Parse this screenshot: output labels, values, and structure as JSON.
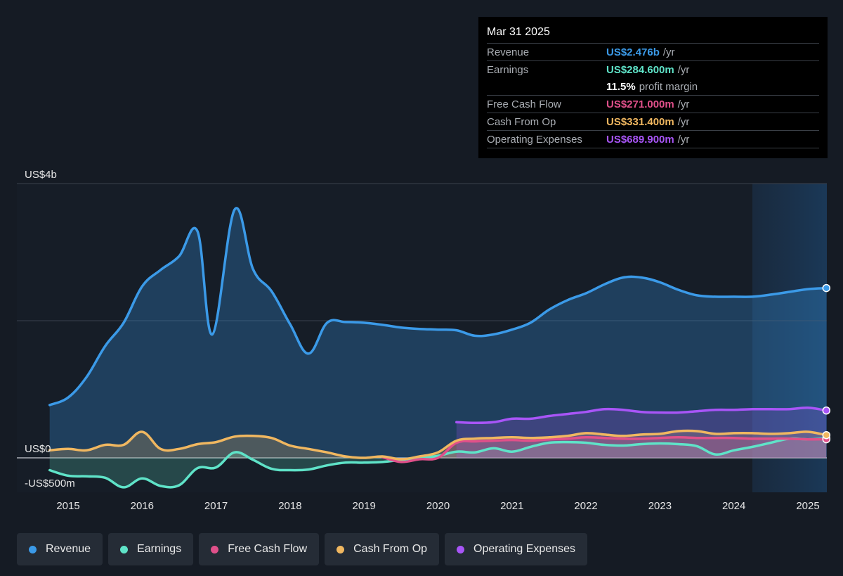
{
  "tooltip": {
    "date": "Mar 31 2025",
    "rows": [
      {
        "label": "Revenue",
        "value": "US$2.476b",
        "unit": "/yr",
        "color": "#3b9ae8"
      },
      {
        "label": "Earnings",
        "value": "US$284.600m",
        "unit": "/yr",
        "color": "#5fe3c8"
      },
      {
        "label": "",
        "value": "11.5%",
        "unit": "profit margin",
        "color": "#ffffff"
      },
      {
        "label": "Free Cash Flow",
        "value": "US$271.000m",
        "unit": "/yr",
        "color": "#e0508a"
      },
      {
        "label": "Cash From Op",
        "value": "US$331.400m",
        "unit": "/yr",
        "color": "#f0b760"
      },
      {
        "label": "Operating Expenses",
        "value": "US$689.900m",
        "unit": "/yr",
        "color": "#a855f7"
      }
    ]
  },
  "legend": [
    {
      "label": "Revenue",
      "color": "#3b9ae8"
    },
    {
      "label": "Earnings",
      "color": "#5fe3c8"
    },
    {
      "label": "Free Cash Flow",
      "color": "#e0508a"
    },
    {
      "label": "Cash From Op",
      "color": "#f0b760"
    },
    {
      "label": "Operating Expenses",
      "color": "#a855f7"
    }
  ],
  "chart_data": {
    "type": "area",
    "units": "US$m",
    "y_tick_labels": [
      {
        "label": "US$4b",
        "value": 4000
      },
      {
        "label": "US$0",
        "value": 0
      },
      {
        "label": "-US$500m",
        "value": -500
      }
    ],
    "ylim": [
      -500,
      4000
    ],
    "xlim": [
      2014.5,
      2025.25
    ],
    "x_ticks": [
      "2015",
      "2016",
      "2017",
      "2018",
      "2019",
      "2020",
      "2021",
      "2022",
      "2023",
      "2024",
      "2025"
    ],
    "forecast_shade_start": 2024.25,
    "series": [
      {
        "name": "Revenue",
        "color": "#3b9ae8",
        "area": true,
        "end_marker": true,
        "points": [
          [
            2014.75,
            770
          ],
          [
            2015,
            880
          ],
          [
            2015.25,
            1180
          ],
          [
            2015.5,
            1630
          ],
          [
            2015.75,
            1970
          ],
          [
            2016,
            2500
          ],
          [
            2016.25,
            2740
          ],
          [
            2016.5,
            2940
          ],
          [
            2016.75,
            3300
          ],
          [
            2016.95,
            1800
          ],
          [
            2017.25,
            3620
          ],
          [
            2017.5,
            2750
          ],
          [
            2017.75,
            2430
          ],
          [
            2018,
            1950
          ],
          [
            2018.25,
            1520
          ],
          [
            2018.5,
            1970
          ],
          [
            2018.75,
            1980
          ],
          [
            2019,
            1970
          ],
          [
            2019.25,
            1940
          ],
          [
            2019.5,
            1900
          ],
          [
            2019.75,
            1880
          ],
          [
            2020,
            1870
          ],
          [
            2020.25,
            1860
          ],
          [
            2020.5,
            1780
          ],
          [
            2020.75,
            1800
          ],
          [
            2021,
            1870
          ],
          [
            2021.25,
            1970
          ],
          [
            2021.5,
            2160
          ],
          [
            2021.75,
            2300
          ],
          [
            2022,
            2400
          ],
          [
            2022.25,
            2530
          ],
          [
            2022.5,
            2630
          ],
          [
            2022.75,
            2630
          ],
          [
            2023,
            2560
          ],
          [
            2023.25,
            2450
          ],
          [
            2023.5,
            2370
          ],
          [
            2023.75,
            2350
          ],
          [
            2024,
            2350
          ],
          [
            2024.25,
            2350
          ],
          [
            2024.5,
            2380
          ],
          [
            2024.75,
            2420
          ],
          [
            2025,
            2460
          ],
          [
            2025.25,
            2476
          ]
        ]
      },
      {
        "name": "Earnings",
        "color": "#5fe3c8",
        "area": true,
        "end_marker": true,
        "points": [
          [
            2014.75,
            -180
          ],
          [
            2015,
            -260
          ],
          [
            2015.25,
            -270
          ],
          [
            2015.5,
            -290
          ],
          [
            2015.75,
            -430
          ],
          [
            2016,
            -300
          ],
          [
            2016.25,
            -410
          ],
          [
            2016.5,
            -400
          ],
          [
            2016.75,
            -150
          ],
          [
            2017,
            -140
          ],
          [
            2017.25,
            80
          ],
          [
            2017.5,
            -30
          ],
          [
            2017.75,
            -160
          ],
          [
            2018,
            -180
          ],
          [
            2018.25,
            -170
          ],
          [
            2018.5,
            -110
          ],
          [
            2018.75,
            -70
          ],
          [
            2019,
            -70
          ],
          [
            2019.25,
            -60
          ],
          [
            2019.5,
            -30
          ],
          [
            2019.75,
            0
          ],
          [
            2020,
            30
          ],
          [
            2020.25,
            90
          ],
          [
            2020.5,
            80
          ],
          [
            2020.75,
            140
          ],
          [
            2021,
            90
          ],
          [
            2021.25,
            160
          ],
          [
            2021.5,
            220
          ],
          [
            2021.75,
            230
          ],
          [
            2022,
            220
          ],
          [
            2022.25,
            190
          ],
          [
            2022.5,
            180
          ],
          [
            2022.75,
            200
          ],
          [
            2023,
            210
          ],
          [
            2023.25,
            200
          ],
          [
            2023.5,
            170
          ],
          [
            2023.75,
            50
          ],
          [
            2024,
            110
          ],
          [
            2024.25,
            160
          ],
          [
            2024.5,
            220
          ],
          [
            2024.75,
            280
          ],
          [
            2025,
            270
          ],
          [
            2025.25,
            284.6
          ]
        ]
      },
      {
        "name": "Free Cash Flow",
        "color": "#e0508a",
        "area": true,
        "end_marker": true,
        "start_x": 2019.25,
        "points": [
          [
            2019.25,
            10
          ],
          [
            2019.5,
            -60
          ],
          [
            2019.75,
            -20
          ],
          [
            2020,
            0
          ],
          [
            2020.25,
            220
          ],
          [
            2020.5,
            240
          ],
          [
            2020.75,
            250
          ],
          [
            2021,
            260
          ],
          [
            2021.25,
            250
          ],
          [
            2021.5,
            270
          ],
          [
            2021.75,
            280
          ],
          [
            2022,
            300
          ],
          [
            2022.25,
            290
          ],
          [
            2022.5,
            280
          ],
          [
            2022.75,
            280
          ],
          [
            2023,
            290
          ],
          [
            2023.25,
            300
          ],
          [
            2023.5,
            290
          ],
          [
            2023.75,
            290
          ],
          [
            2024,
            290
          ],
          [
            2024.25,
            280
          ],
          [
            2024.5,
            280
          ],
          [
            2024.75,
            280
          ],
          [
            2025,
            270
          ],
          [
            2025.25,
            271
          ]
        ]
      },
      {
        "name": "Cash From Op",
        "color": "#f0b760",
        "area": true,
        "end_marker": true,
        "points": [
          [
            2014.75,
            110
          ],
          [
            2015,
            130
          ],
          [
            2015.25,
            110
          ],
          [
            2015.5,
            190
          ],
          [
            2015.75,
            190
          ],
          [
            2016,
            380
          ],
          [
            2016.25,
            130
          ],
          [
            2016.5,
            130
          ],
          [
            2016.75,
            200
          ],
          [
            2017,
            230
          ],
          [
            2017.25,
            310
          ],
          [
            2017.5,
            320
          ],
          [
            2017.75,
            290
          ],
          [
            2018,
            180
          ],
          [
            2018.25,
            130
          ],
          [
            2018.5,
            80
          ],
          [
            2018.75,
            20
          ],
          [
            2019,
            0
          ],
          [
            2019.25,
            20
          ],
          [
            2019.5,
            -20
          ],
          [
            2019.75,
            20
          ],
          [
            2020,
            80
          ],
          [
            2020.25,
            250
          ],
          [
            2020.5,
            280
          ],
          [
            2020.75,
            290
          ],
          [
            2021,
            300
          ],
          [
            2021.25,
            290
          ],
          [
            2021.5,
            300
          ],
          [
            2021.75,
            320
          ],
          [
            2022,
            360
          ],
          [
            2022.25,
            340
          ],
          [
            2022.5,
            320
          ],
          [
            2022.75,
            340
          ],
          [
            2023,
            350
          ],
          [
            2023.25,
            390
          ],
          [
            2023.5,
            390
          ],
          [
            2023.75,
            350
          ],
          [
            2024,
            360
          ],
          [
            2024.25,
            360
          ],
          [
            2024.5,
            350
          ],
          [
            2024.75,
            360
          ],
          [
            2025,
            380
          ],
          [
            2025.25,
            331.4
          ]
        ]
      },
      {
        "name": "Operating Expenses",
        "color": "#a855f7",
        "area": true,
        "end_marker": true,
        "points": [
          [
            2020.25,
            520
          ],
          [
            2020.5,
            510
          ],
          [
            2020.75,
            520
          ],
          [
            2021,
            570
          ],
          [
            2021.25,
            570
          ],
          [
            2021.5,
            610
          ],
          [
            2021.75,
            640
          ],
          [
            2022,
            670
          ],
          [
            2022.25,
            710
          ],
          [
            2022.5,
            700
          ],
          [
            2022.75,
            670
          ],
          [
            2023,
            660
          ],
          [
            2023.25,
            660
          ],
          [
            2023.5,
            680
          ],
          [
            2023.75,
            700
          ],
          [
            2024,
            700
          ],
          [
            2024.25,
            710
          ],
          [
            2024.5,
            710
          ],
          [
            2024.75,
            710
          ],
          [
            2025,
            730
          ],
          [
            2025.25,
            689.9
          ]
        ]
      }
    ]
  }
}
